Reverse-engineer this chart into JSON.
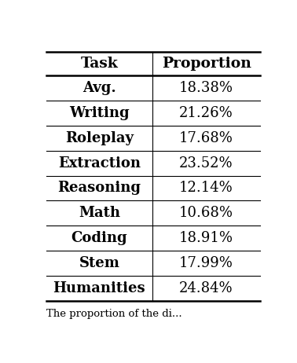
{
  "headers": [
    "Task",
    "Proportion"
  ],
  "rows": [
    [
      "Avg.",
      "18.38%"
    ],
    [
      "Writing",
      "21.26%"
    ],
    [
      "Roleplay",
      "17.68%"
    ],
    [
      "Extraction",
      "23.52%"
    ],
    [
      "Reasoning",
      "12.14%"
    ],
    [
      "Math",
      "10.68%"
    ],
    [
      "Coding",
      "18.91%"
    ],
    [
      "Stem",
      "17.99%"
    ],
    [
      "Humanities",
      "24.84%"
    ]
  ],
  "figsize": [
    3.78,
    4.62
  ],
  "dpi": 100,
  "background_color": "#ffffff",
  "header_fontsize": 13.5,
  "task_fontsize": 13.0,
  "proportion_fontsize": 13.0,
  "caption_fontsize": 9.5,
  "caption": "The proportion of the di..."
}
